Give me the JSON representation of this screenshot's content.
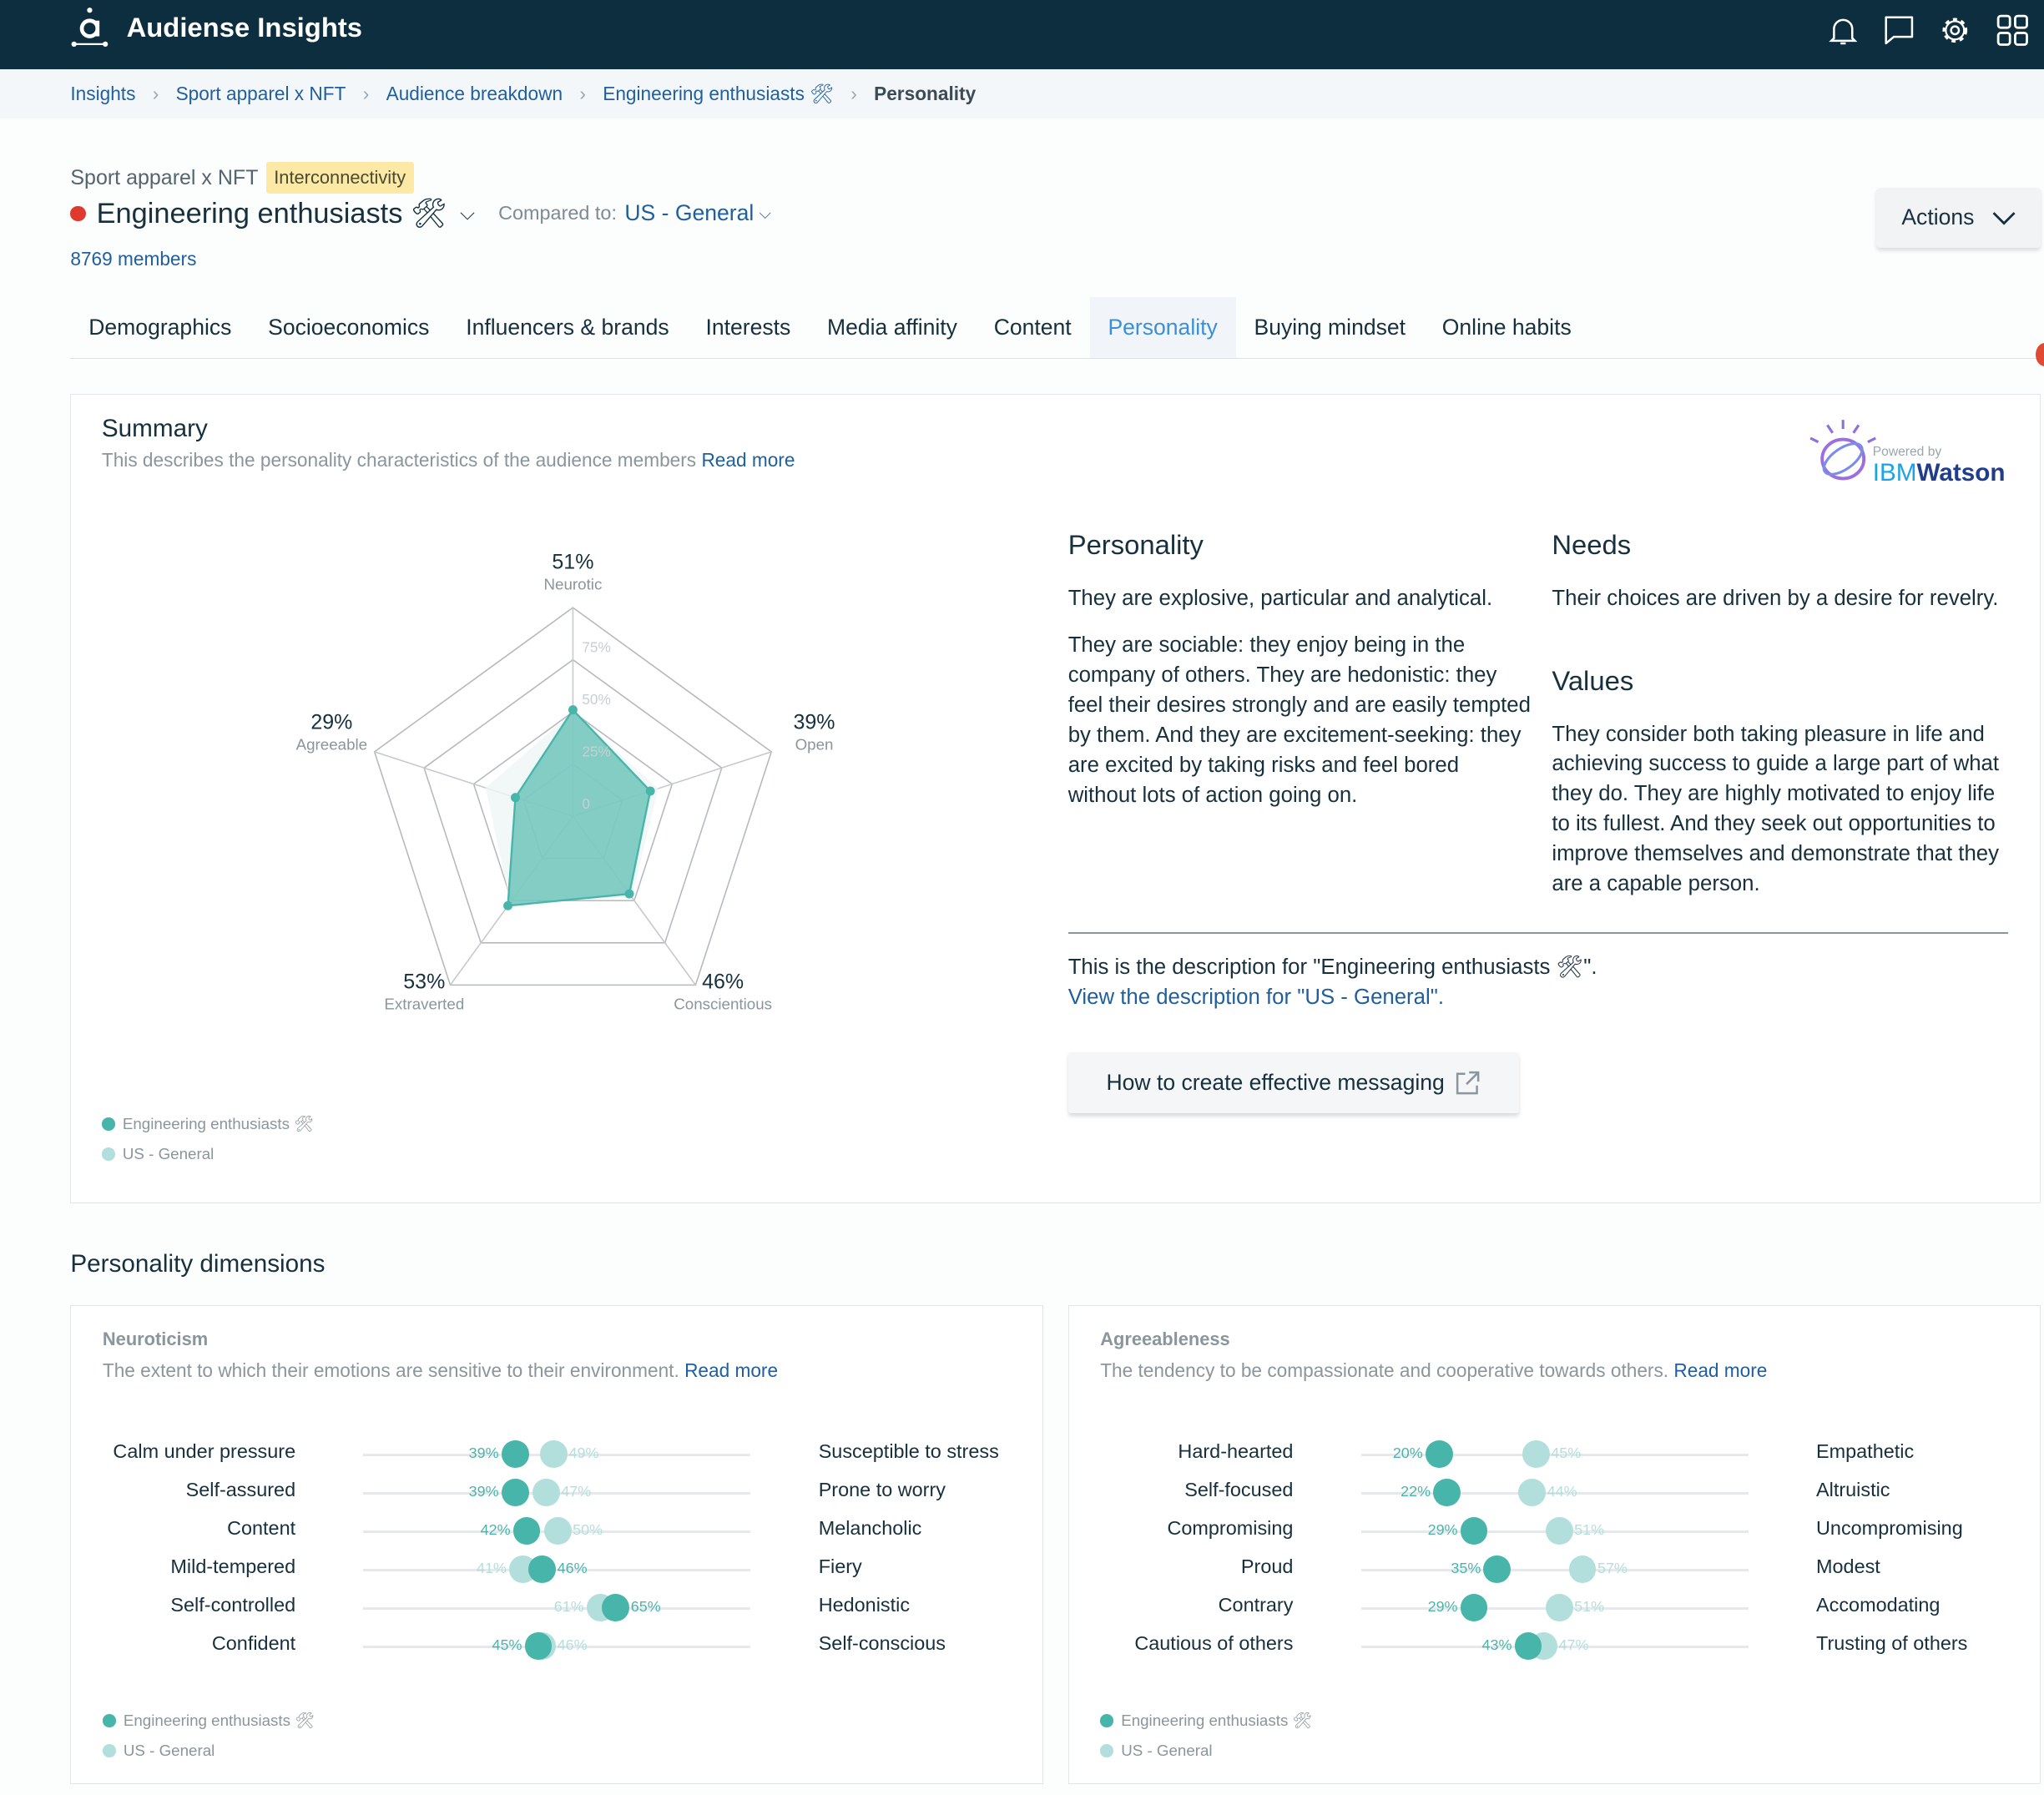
{
  "app": {
    "title": "Audiense Insights",
    "icons": [
      "bell-icon",
      "chat-icon",
      "gear-icon",
      "apps-grid-icon"
    ]
  },
  "breadcrumb": [
    "Insights",
    "Sport apparel x NFT",
    "Audience breakdown",
    "Engineering enthusiasts 🛠",
    "Personality"
  ],
  "header": {
    "project": "Sport apparel x NFT",
    "badge": "Interconnectivity",
    "audience": "Engineering enthusiasts 🛠",
    "compared_label": "Compared to:",
    "compared_value": "US - General",
    "members": "8769 members",
    "actions": "Actions",
    "audience_color": "#e03a2f"
  },
  "tabs": [
    {
      "label": "Demographics"
    },
    {
      "label": "Socioeconomics"
    },
    {
      "label": "Influencers & brands"
    },
    {
      "label": "Interests"
    },
    {
      "label": "Media affinity"
    },
    {
      "label": "Content"
    },
    {
      "label": "Personality",
      "active": true
    },
    {
      "label": "Buying mindset"
    },
    {
      "label": "Online habits"
    }
  ],
  "summary": {
    "title": "Summary",
    "subtitle": "This describes the personality characteristics of the audience members",
    "read_more": "Read more",
    "powered_by": "Powered by",
    "ibm": "IBM",
    "watson": "Watson",
    "personality_title": "Personality",
    "personality_p1": "They are explosive, particular and analytical.",
    "personality_p2": "They are sociable: they enjoy being in the company of others. They are hedonistic: they feel their desires strongly and are easily tempted by them. And they are excitement-seeking: they are excited by taking risks and feel bored without lots of action going on.",
    "needs_title": "Needs",
    "needs_p": "Their choices are driven by a desire for revelry.",
    "values_title": "Values",
    "values_p": "They consider both taking pleasure in life and achieving success to guide a large part of what they do. They are highly motivated to enjoy life to its fullest. And they seek out opportunities to improve themselves and demonstrate that they are a capable person.",
    "desc_note": "This is the description for \"Engineering enthusiasts 🛠\".",
    "view_general": "View the description for \"US - General\".",
    "messaging_button": "How to create effective messaging"
  },
  "colors": {
    "primary": "#48b5aa",
    "comparison": "#b2dfdb",
    "header_bg": "#0d2e3e",
    "link": "#1f5f9e",
    "tab_active": "#3a90d8"
  },
  "legend": [
    "Engineering enthusiasts 🛠",
    "US - General"
  ],
  "chart_data": {
    "type": "radar",
    "axes": [
      "Neurotic",
      "Open",
      "Conscientious",
      "Extraverted",
      "Agreeable"
    ],
    "rlim": [
      0,
      100
    ],
    "ticks": [
      "0",
      "25%",
      "50%",
      "75%"
    ],
    "series": [
      {
        "name": "Engineering enthusiasts 🛠",
        "values": [
          51,
          39,
          46,
          53,
          29
        ],
        "labels": [
          "51%",
          "39%",
          "46%",
          "53%",
          "29%"
        ]
      },
      {
        "name": "US - General",
        "values": [
          50,
          43,
          48,
          51,
          44
        ]
      }
    ]
  },
  "dimensions": {
    "title": "Personality dimensions",
    "cards": [
      {
        "title": "Neuroticism",
        "subtitle": "The extent to which their emotions are sensitive to their environment.",
        "read_more": "Read more",
        "rows": [
          {
            "left": "Calm under pressure",
            "right": "Susceptible to stress",
            "value": 39,
            "compare": 49
          },
          {
            "left": "Self-assured",
            "right": "Prone to worry",
            "value": 39,
            "compare": 47
          },
          {
            "left": "Content",
            "right": "Melancholic",
            "value": 42,
            "compare": 50
          },
          {
            "left": "Mild-tempered",
            "right": "Fiery",
            "value": 46,
            "compare": 41
          },
          {
            "left": "Self-controlled",
            "right": "Hedonistic",
            "value": 65,
            "compare": 61
          },
          {
            "left": "Confident",
            "right": "Self-conscious",
            "value": 45,
            "compare": 46
          }
        ]
      },
      {
        "title": "Agreeableness",
        "subtitle": "The tendency to be compassionate and cooperative towards others.",
        "read_more": "Read more",
        "rows": [
          {
            "left": "Hard-hearted",
            "right": "Empathetic",
            "value": 20,
            "compare": 45
          },
          {
            "left": "Self-focused",
            "right": "Altruistic",
            "value": 22,
            "compare": 44
          },
          {
            "left": "Compromising",
            "right": "Uncompromising",
            "value": 29,
            "compare": 51
          },
          {
            "left": "Proud",
            "right": "Modest",
            "value": 35,
            "compare": 57
          },
          {
            "left": "Contrary",
            "right": "Accomodating",
            "value": 29,
            "compare": 51
          },
          {
            "left": "Cautious of others",
            "right": "Trusting of others",
            "value": 43,
            "compare": 47
          }
        ]
      }
    ]
  }
}
